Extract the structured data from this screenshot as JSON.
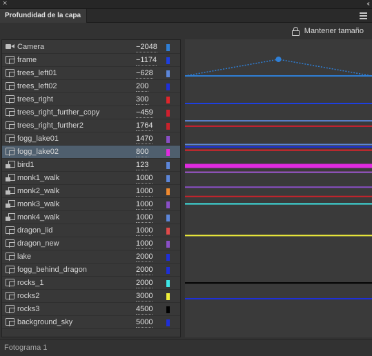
{
  "window": {
    "close_glyph": "×",
    "collapse_glyph": "‹‹"
  },
  "panel": {
    "tab_title": "Profundidad de la capa"
  },
  "toolbar": {
    "keep_size_label": "Mantener tamaño",
    "keep_size_icon": "lock-icon"
  },
  "layers": [
    {
      "name": "Camera",
      "depth": "−2048",
      "color": "#2f7fd6",
      "icon": "camera-icon"
    },
    {
      "name": "frame",
      "depth": "−1174",
      "color": "#1d3fe0",
      "icon": "layer-icon"
    },
    {
      "name": "trees_left01",
      "depth": "−628",
      "color": "#5c86d9",
      "icon": "layer-icon"
    },
    {
      "name": "trees_left02",
      "depth": "200",
      "color": "#1e2fd8",
      "icon": "layer-icon"
    },
    {
      "name": "trees_right",
      "depth": "300",
      "color": "#e0252b",
      "icon": "layer-icon"
    },
    {
      "name": "trees_right_further_copy",
      "depth": "−459",
      "color": "#d01f2e",
      "icon": "layer-icon"
    },
    {
      "name": "trees_right_further2",
      "depth": "1764",
      "color": "#c9222b",
      "icon": "layer-icon"
    },
    {
      "name": "fogg_lake01",
      "depth": "1470",
      "color": "#8a4fc6",
      "icon": "layer-icon"
    },
    {
      "name": "fogg_lake02",
      "depth": "800",
      "color": "#e02be0",
      "icon": "layer-icon",
      "selected": true
    },
    {
      "name": "bird1",
      "depth": "123",
      "color": "#5c86d9",
      "icon": "guided-layer-icon"
    },
    {
      "name": "monk1_walk",
      "depth": "1000",
      "color": "#5c86d9",
      "icon": "guided-layer-icon"
    },
    {
      "name": "monk2_walk",
      "depth": "1000",
      "color": "#f08a2e",
      "icon": "guided-layer-icon"
    },
    {
      "name": "monk3_walk",
      "depth": "1000",
      "color": "#8a4fc6",
      "icon": "guided-layer-icon"
    },
    {
      "name": "monk4_walk",
      "depth": "1000",
      "color": "#5c86d9",
      "icon": "guided-layer-icon"
    },
    {
      "name": "dragon_lid",
      "depth": "1000",
      "color": "#e04a4a",
      "icon": "layer-icon"
    },
    {
      "name": "dragon_new",
      "depth": "1000",
      "color": "#8a4fc6",
      "icon": "layer-icon"
    },
    {
      "name": "lake",
      "depth": "2000",
      "color": "#1e2fd8",
      "icon": "layer-icon"
    },
    {
      "name": "fogg_behind_dragon",
      "depth": "2000",
      "color": "#1e2fd8",
      "icon": "layer-icon"
    },
    {
      "name": "rocks_1",
      "depth": "2000",
      "color": "#3ee6e6",
      "icon": "layer-icon"
    },
    {
      "name": "rocks2",
      "depth": "3000",
      "color": "#f0ef3a",
      "icon": "layer-icon"
    },
    {
      "name": "rocks3",
      "depth": "4500",
      "color": "#000000",
      "icon": "layer-icon"
    },
    {
      "name": "background_sky",
      "depth": "5000",
      "color": "#1e2fd8",
      "icon": "layer-icon"
    }
  ],
  "statusbar": {
    "frame_label": "Fotograma 1"
  }
}
